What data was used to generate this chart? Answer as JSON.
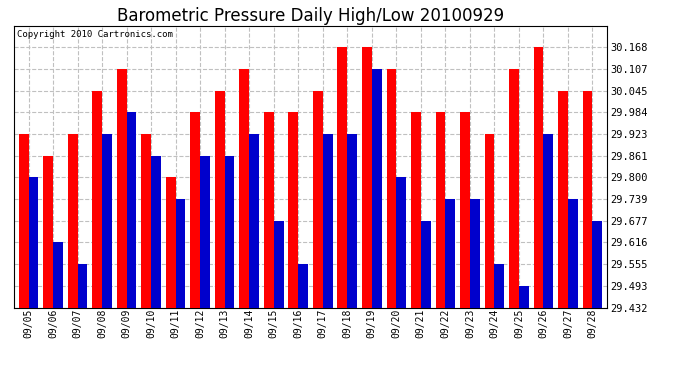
{
  "title": "Barometric Pressure Daily High/Low 20100929",
  "copyright": "Copyright 2010 Cartronics.com",
  "dates": [
    "09/05",
    "09/06",
    "09/07",
    "09/08",
    "09/09",
    "09/10",
    "09/11",
    "09/12",
    "09/13",
    "09/14",
    "09/15",
    "09/16",
    "09/17",
    "09/18",
    "09/19",
    "09/20",
    "09/21",
    "09/22",
    "09/23",
    "09/24",
    "09/25",
    "09/26",
    "09/27",
    "09/28"
  ],
  "high": [
    29.923,
    29.861,
    29.923,
    30.045,
    30.107,
    29.923,
    29.8,
    29.984,
    30.045,
    30.107,
    29.984,
    29.984,
    30.045,
    30.168,
    30.168,
    30.107,
    29.984,
    29.984,
    29.984,
    29.923,
    30.107,
    30.168,
    30.045,
    30.045
  ],
  "low": [
    29.8,
    29.616,
    29.555,
    29.923,
    29.984,
    29.861,
    29.739,
    29.861,
    29.861,
    29.923,
    29.677,
    29.555,
    29.923,
    29.923,
    30.107,
    29.8,
    29.677,
    29.739,
    29.739,
    29.555,
    29.493,
    29.923,
    29.739,
    29.677
  ],
  "ylim_min": 29.432,
  "ylim_max": 30.228,
  "yticks": [
    29.432,
    29.493,
    29.555,
    29.616,
    29.677,
    29.739,
    29.8,
    29.861,
    29.923,
    29.984,
    30.045,
    30.107,
    30.168
  ],
  "high_color": "#ff0000",
  "low_color": "#0000cc",
  "bg_color": "#ffffff",
  "grid_color": "#c0c0c0",
  "title_fontsize": 12,
  "bar_width": 0.4
}
